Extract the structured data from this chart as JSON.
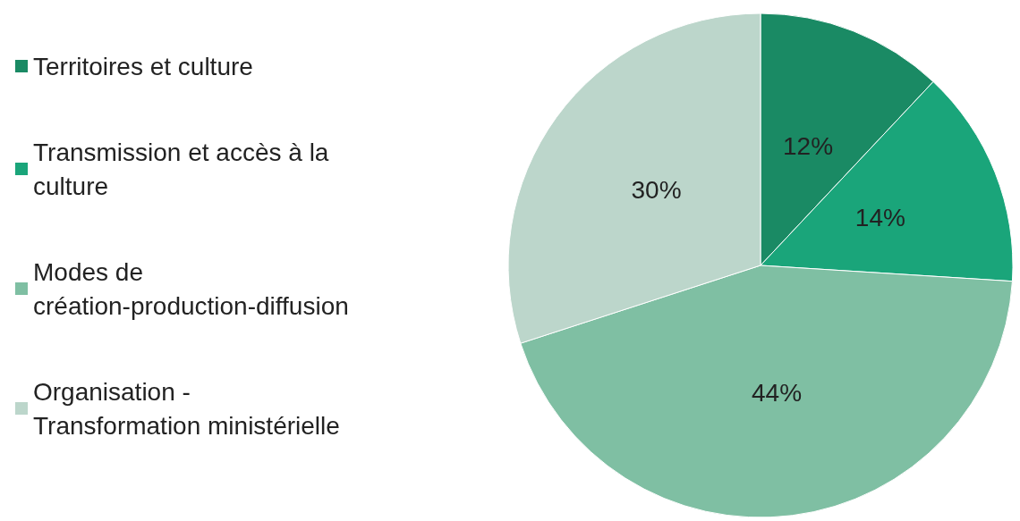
{
  "chart_data": {
    "type": "pie",
    "categories": [
      "Territoires et culture",
      "Transmission et accès à la culture",
      "Modes de création-production-diffusion",
      "Organisation - Transformation ministérielle"
    ],
    "values": [
      12,
      14,
      44,
      30
    ],
    "colors": [
      "#1a8a64",
      "#1aa57a",
      "#7fbfa3",
      "#bcd6cb"
    ],
    "value_labels": [
      "12%",
      "14%",
      "44%",
      "30%"
    ],
    "legend": "left"
  }
}
